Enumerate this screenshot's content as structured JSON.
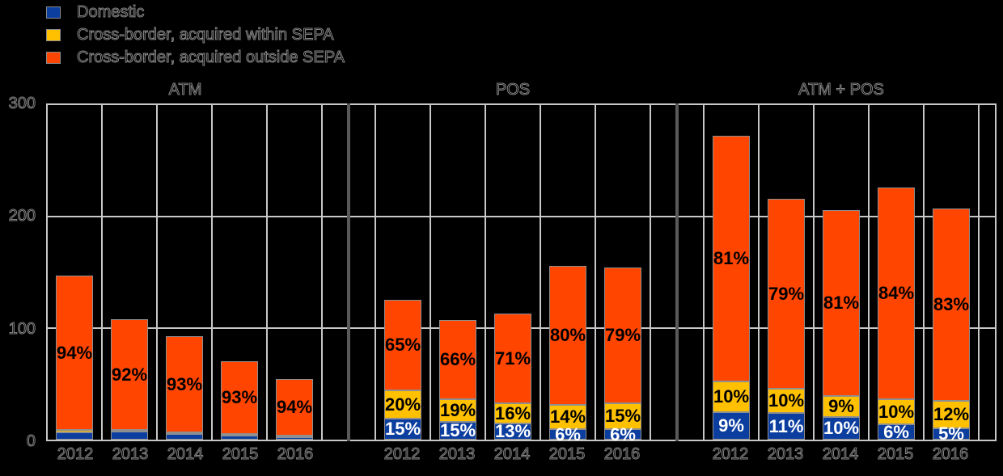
{
  "colors": {
    "domestic": "#0c3ea0",
    "within_sepa": "#ffc000",
    "outside_sepa": "#ff4500",
    "gridline": "#c8c8c8",
    "panel_separator": "#595959",
    "background": "#000000",
    "label_on_domestic": "#ffffff",
    "label_on_warm": "#000000"
  },
  "legend": {
    "items": [
      {
        "series": "domestic",
        "label": "Domestic"
      },
      {
        "series": "within_sepa",
        "label": "Cross-border, acquired within SEPA"
      },
      {
        "series": "outside_sepa",
        "label": "Cross-border, acquired outside SEPA"
      }
    ]
  },
  "chart_data": {
    "type": "bar",
    "stacked": true,
    "title": "",
    "legend_position": "top-left",
    "y_axis": {
      "min": 0,
      "max": 300,
      "ticks": [
        "300",
        "200",
        "100",
        "0"
      ],
      "gridlines_at": [
        200,
        100
      ]
    },
    "series_order": [
      "domestic",
      "within_sepa",
      "outside_sepa"
    ],
    "panels": [
      {
        "title": "ATM",
        "categories": [
          "2012",
          "2013",
          "2014",
          "2015",
          "2016"
        ],
        "bars": [
          {
            "year": "2012",
            "total_est": 147,
            "segments": {
              "domestic": {
                "pct": 4.5,
                "label": ""
              },
              "within_sepa": {
                "pct": 1.5,
                "label": ""
              },
              "outside_sepa": {
                "pct": 94,
                "label": "94%"
              }
            }
          },
          {
            "year": "2013",
            "total_est": 108,
            "segments": {
              "domestic": {
                "pct": 6.5,
                "label": ""
              },
              "within_sepa": {
                "pct": 1.5,
                "label": ""
              },
              "outside_sepa": {
                "pct": 92,
                "label": "92%"
              }
            }
          },
          {
            "year": "2014",
            "total_est": 93,
            "segments": {
              "domestic": {
                "pct": 5.5,
                "label": ""
              },
              "within_sepa": {
                "pct": 1.5,
                "label": ""
              },
              "outside_sepa": {
                "pct": 93,
                "label": "93%"
              }
            }
          },
          {
            "year": "2015",
            "total_est": 70,
            "segments": {
              "domestic": {
                "pct": 5,
                "label": ""
              },
              "within_sepa": {
                "pct": 2,
                "label": ""
              },
              "outside_sepa": {
                "pct": 93,
                "label": "93%"
              }
            }
          },
          {
            "year": "2016",
            "total_est": 54,
            "segments": {
              "domestic": {
                "pct": 4.5,
                "label": ""
              },
              "within_sepa": {
                "pct": 1.5,
                "label": ""
              },
              "outside_sepa": {
                "pct": 94,
                "label": "94%"
              }
            }
          }
        ]
      },
      {
        "title": "POS",
        "categories": [
          "2012",
          "2013",
          "2014",
          "2015",
          "2016"
        ],
        "bars": [
          {
            "year": "2012",
            "total_est": 125,
            "segments": {
              "domestic": {
                "pct": 15,
                "label": "15%"
              },
              "within_sepa": {
                "pct": 20,
                "label": "20%"
              },
              "outside_sepa": {
                "pct": 65,
                "label": "65%"
              }
            }
          },
          {
            "year": "2013",
            "total_est": 108,
            "segments": {
              "domestic": {
                "pct": 15,
                "label": "15%"
              },
              "within_sepa": {
                "pct": 19,
                "label": "19%"
              },
              "outside_sepa": {
                "pct": 66,
                "label": "66%"
              }
            }
          },
          {
            "year": "2014",
            "total_est": 113,
            "segments": {
              "domestic": {
                "pct": 13,
                "label": "13%"
              },
              "within_sepa": {
                "pct": 16,
                "label": "16%"
              },
              "outside_sepa": {
                "pct": 71,
                "label": "71%"
              }
            }
          },
          {
            "year": "2015",
            "total_est": 156,
            "segments": {
              "domestic": {
                "pct": 6,
                "label": "6%"
              },
              "within_sepa": {
                "pct": 14,
                "label": "14%"
              },
              "outside_sepa": {
                "pct": 80,
                "label": "80%"
              }
            }
          },
          {
            "year": "2016",
            "total_est": 154,
            "segments": {
              "domestic": {
                "pct": 6,
                "label": "6%"
              },
              "within_sepa": {
                "pct": 15,
                "label": "15%"
              },
              "outside_sepa": {
                "pct": 79,
                "label": "79%"
              }
            }
          }
        ]
      },
      {
        "title": "ATM + POS",
        "categories": [
          "2012",
          "2013",
          "2014",
          "2015",
          "2016"
        ],
        "bars": [
          {
            "year": "2012",
            "total_est": 272,
            "segments": {
              "domestic": {
                "pct": 9,
                "label": "9%"
              },
              "within_sepa": {
                "pct": 10,
                "label": "10%"
              },
              "outside_sepa": {
                "pct": 81,
                "label": "81%"
              }
            }
          },
          {
            "year": "2013",
            "total_est": 216,
            "segments": {
              "domestic": {
                "pct": 11,
                "label": "11%"
              },
              "within_sepa": {
                "pct": 10,
                "label": "10%"
              },
              "outside_sepa": {
                "pct": 79,
                "label": "79%"
              }
            }
          },
          {
            "year": "2014",
            "total_est": 206,
            "segments": {
              "domestic": {
                "pct": 10,
                "label": "10%"
              },
              "within_sepa": {
                "pct": 9,
                "label": "9%"
              },
              "outside_sepa": {
                "pct": 81,
                "label": "81%"
              }
            }
          },
          {
            "year": "2015",
            "total_est": 226,
            "segments": {
              "domestic": {
                "pct": 6,
                "label": "6%"
              },
              "within_sepa": {
                "pct": 10,
                "label": "10%"
              },
              "outside_sepa": {
                "pct": 84,
                "label": "84%"
              }
            }
          },
          {
            "year": "2016",
            "total_est": 208,
            "segments": {
              "domestic": {
                "pct": 5,
                "label": "5%"
              },
              "within_sepa": {
                "pct": 12,
                "label": "12%"
              },
              "outside_sepa": {
                "pct": 83,
                "label": "83%"
              }
            }
          }
        ]
      }
    ]
  }
}
